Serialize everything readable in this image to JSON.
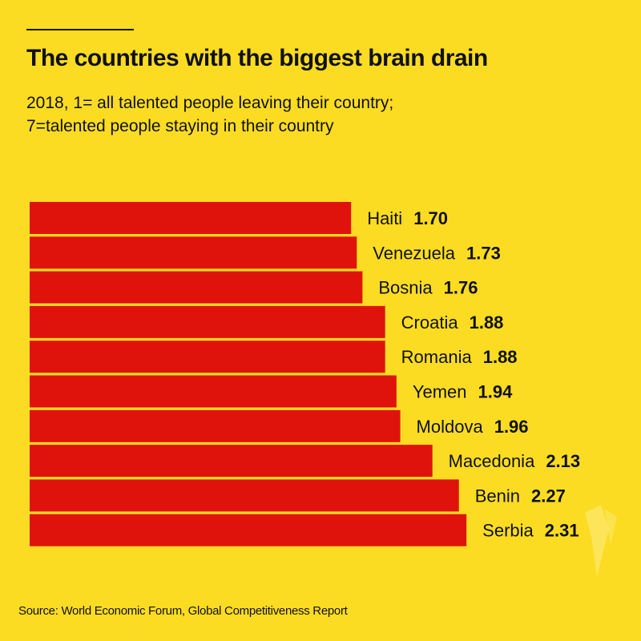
{
  "header": {
    "title": "The countries with the biggest brain drain",
    "subtitle_line1": "2018, 1= all talented people leaving their country;",
    "subtitle_line2": "7=talented people staying in their country"
  },
  "footer": {
    "source": "Source: World Economic Forum, Global Competitiveness Report"
  },
  "colors": {
    "background": "#fbdc22",
    "bar": "#e0120c",
    "text": "#111111"
  },
  "chart_data": {
    "type": "bar",
    "orientation": "horizontal",
    "title": "The countries with the biggest brain drain",
    "subtitle": "2018, 1= all talented people leaving their country; 7=talented people staying in their country",
    "xlabel": "",
    "ylabel": "",
    "categories": [
      "Haiti",
      "Venezuela",
      "Bosnia",
      "Croatia",
      "Romania",
      "Yemen",
      "Moldova",
      "Macedonia",
      "Benin",
      "Serbia"
    ],
    "values": [
      1.7,
      1.73,
      1.76,
      1.88,
      1.88,
      1.94,
      1.96,
      2.13,
      2.27,
      2.31
    ],
    "value_labels": [
      "1.70",
      "1.73",
      "1.76",
      "1.88",
      "1.88",
      "1.94",
      "1.96",
      "2.13",
      "2.27",
      "2.31"
    ],
    "xlim": [
      0,
      2.31
    ],
    "grid": false,
    "legend": "none",
    "source": "Source: World Economic Forum, Global Competitiveness Report"
  }
}
